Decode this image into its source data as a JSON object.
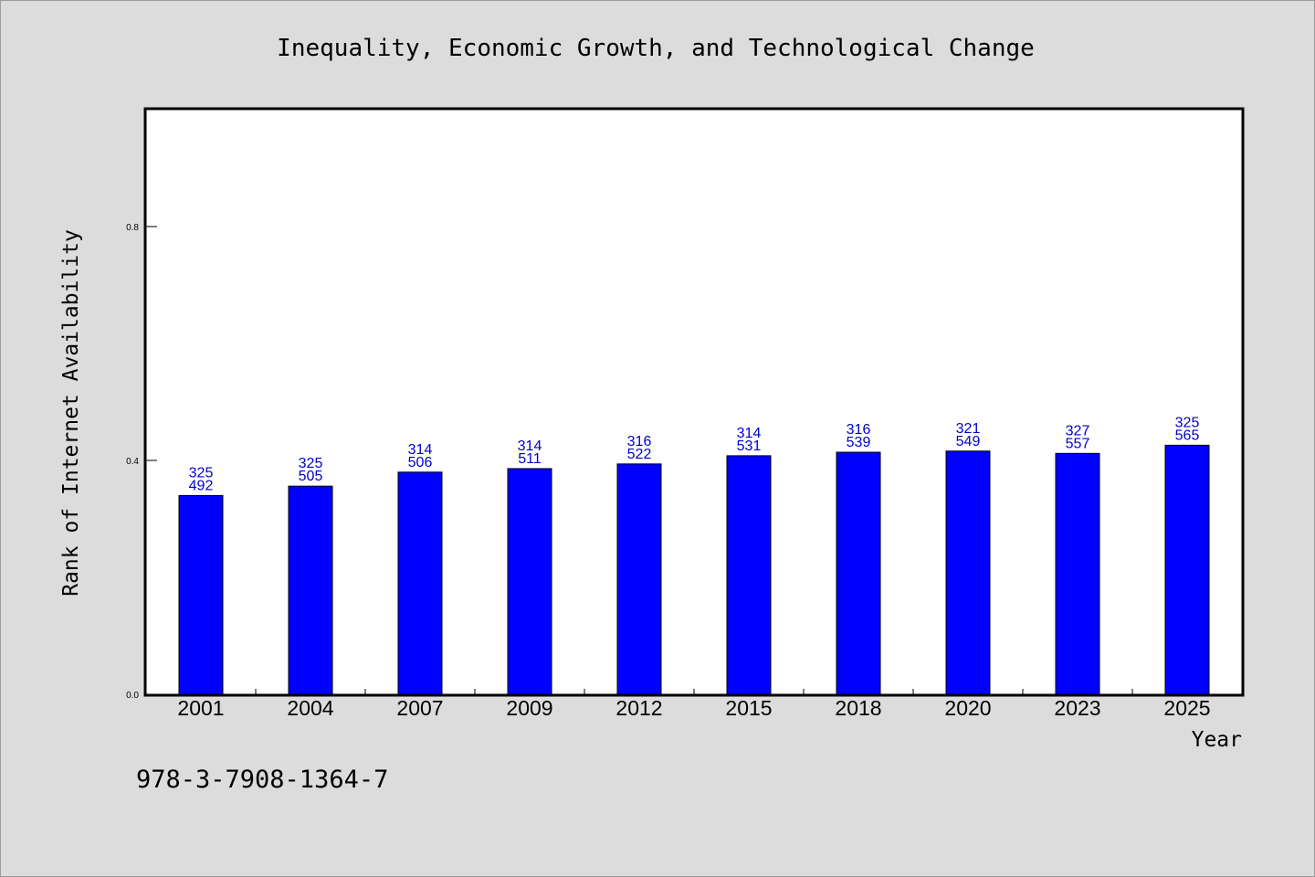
{
  "chart_data": {
    "type": "bar",
    "title": "Inequality, Economic Growth, and Technological Change",
    "xlabel": "Year",
    "ylabel": "Rank of Internet Availability",
    "categories": [
      "2001",
      "2004",
      "2007",
      "2009",
      "2012",
      "2015",
      "2018",
      "2020",
      "2023",
      "2025"
    ],
    "values": [
      0.34,
      0.356,
      0.38,
      0.386,
      0.394,
      0.408,
      0.414,
      0.416,
      0.412,
      0.426
    ],
    "label_top": [
      "325",
      "325",
      "314",
      "314",
      "316",
      "314",
      "316",
      "321",
      "327",
      "325"
    ],
    "label_bottom": [
      "492",
      "505",
      "506",
      "511",
      "522",
      "531",
      "539",
      "549",
      "557",
      "565"
    ],
    "ylim": [
      0,
      1.0
    ],
    "yticks": [
      "0.0",
      "0.4",
      "0.8"
    ],
    "grid": false,
    "bar_color": "#0000ff",
    "label_color": "#0000cc"
  },
  "footnote": "978-3-7908-1364-7"
}
